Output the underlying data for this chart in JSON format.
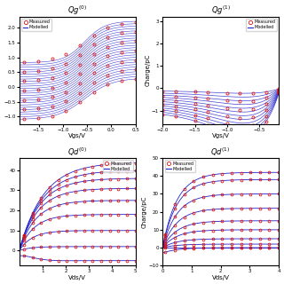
{
  "title_tl": "Qg$^{(0)}$",
  "title_tr": "Qg$^{(1)}$",
  "title_bl": "Qd$^{(0)}$",
  "title_br": "Qd$^{(1)}$",
  "xlabel_top": "Vgs/V",
  "xlabel_bot": "Vds/V",
  "ylabel_tr": "Charge/pC",
  "ylabel_br": "Charge/pC",
  "legend_measured": "Measured",
  "legend_modelled": "Modelled",
  "line_color": "#2222cc",
  "marker_color": "#dd1111",
  "background": "#ffffff",
  "tl_xlim": [
    -1.9,
    0.5
  ],
  "tl_xticks": [
    -1.5,
    -1.0,
    -0.5,
    0.0,
    0.5
  ],
  "tl_n_lines": 25,
  "tr_xlim": [
    -2.0,
    -0.2
  ],
  "tr_xticks": [
    -2.0,
    -1.5,
    -1.0,
    -0.5
  ],
  "tr_ylim": [
    -1.6,
    3.2
  ],
  "tr_yticks": [
    -1,
    0,
    1,
    2,
    3
  ],
  "bl_xlim": [
    0,
    5
  ],
  "bl_xticks": [
    1,
    2,
    3,
    4,
    5
  ],
  "br_xlim": [
    0,
    4
  ],
  "br_xticks": [
    0,
    1,
    2,
    3,
    4
  ],
  "br_ylim": [
    -10,
    50
  ],
  "br_yticks": [
    -10,
    0,
    10,
    20,
    30,
    40,
    50
  ]
}
